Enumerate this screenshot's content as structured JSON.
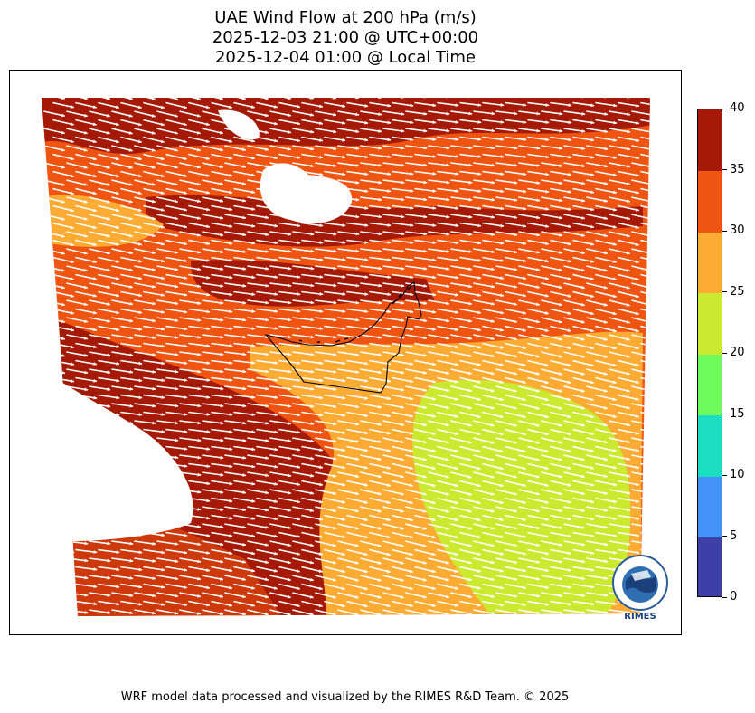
{
  "title": {
    "line1": "UAE Wind Flow at 200 hPa (m/s)",
    "line2": "2025-12-03 21:00 @ UTC+00:00",
    "line3": "2025-12-04 01:00 @ Local Time"
  },
  "colorbar": {
    "levels": [
      0,
      5,
      10,
      15,
      20,
      25,
      30,
      35,
      40
    ],
    "tick_labels": [
      "0",
      "5",
      "10",
      "15",
      "20",
      "25",
      "30",
      "35",
      "40"
    ],
    "colors": [
      "#3f3fa8",
      "#4392f8",
      "#1cdcc2",
      "#6ffb5b",
      "#cbea2f",
      "#fdab33",
      "#ef5411",
      "#a51a06"
    ]
  },
  "map": {
    "region": "UAE",
    "vector_field": "white wind arrows, mostly eastward with slight south-east tilt",
    "boundary": "UAE national border outline"
  },
  "logo": {
    "text": "RIMES",
    "icon": "rimes-globe-logo"
  },
  "footer": {
    "credit": "WRF model data processed and visualized by the RIMES R&D Team. © 2025"
  }
}
